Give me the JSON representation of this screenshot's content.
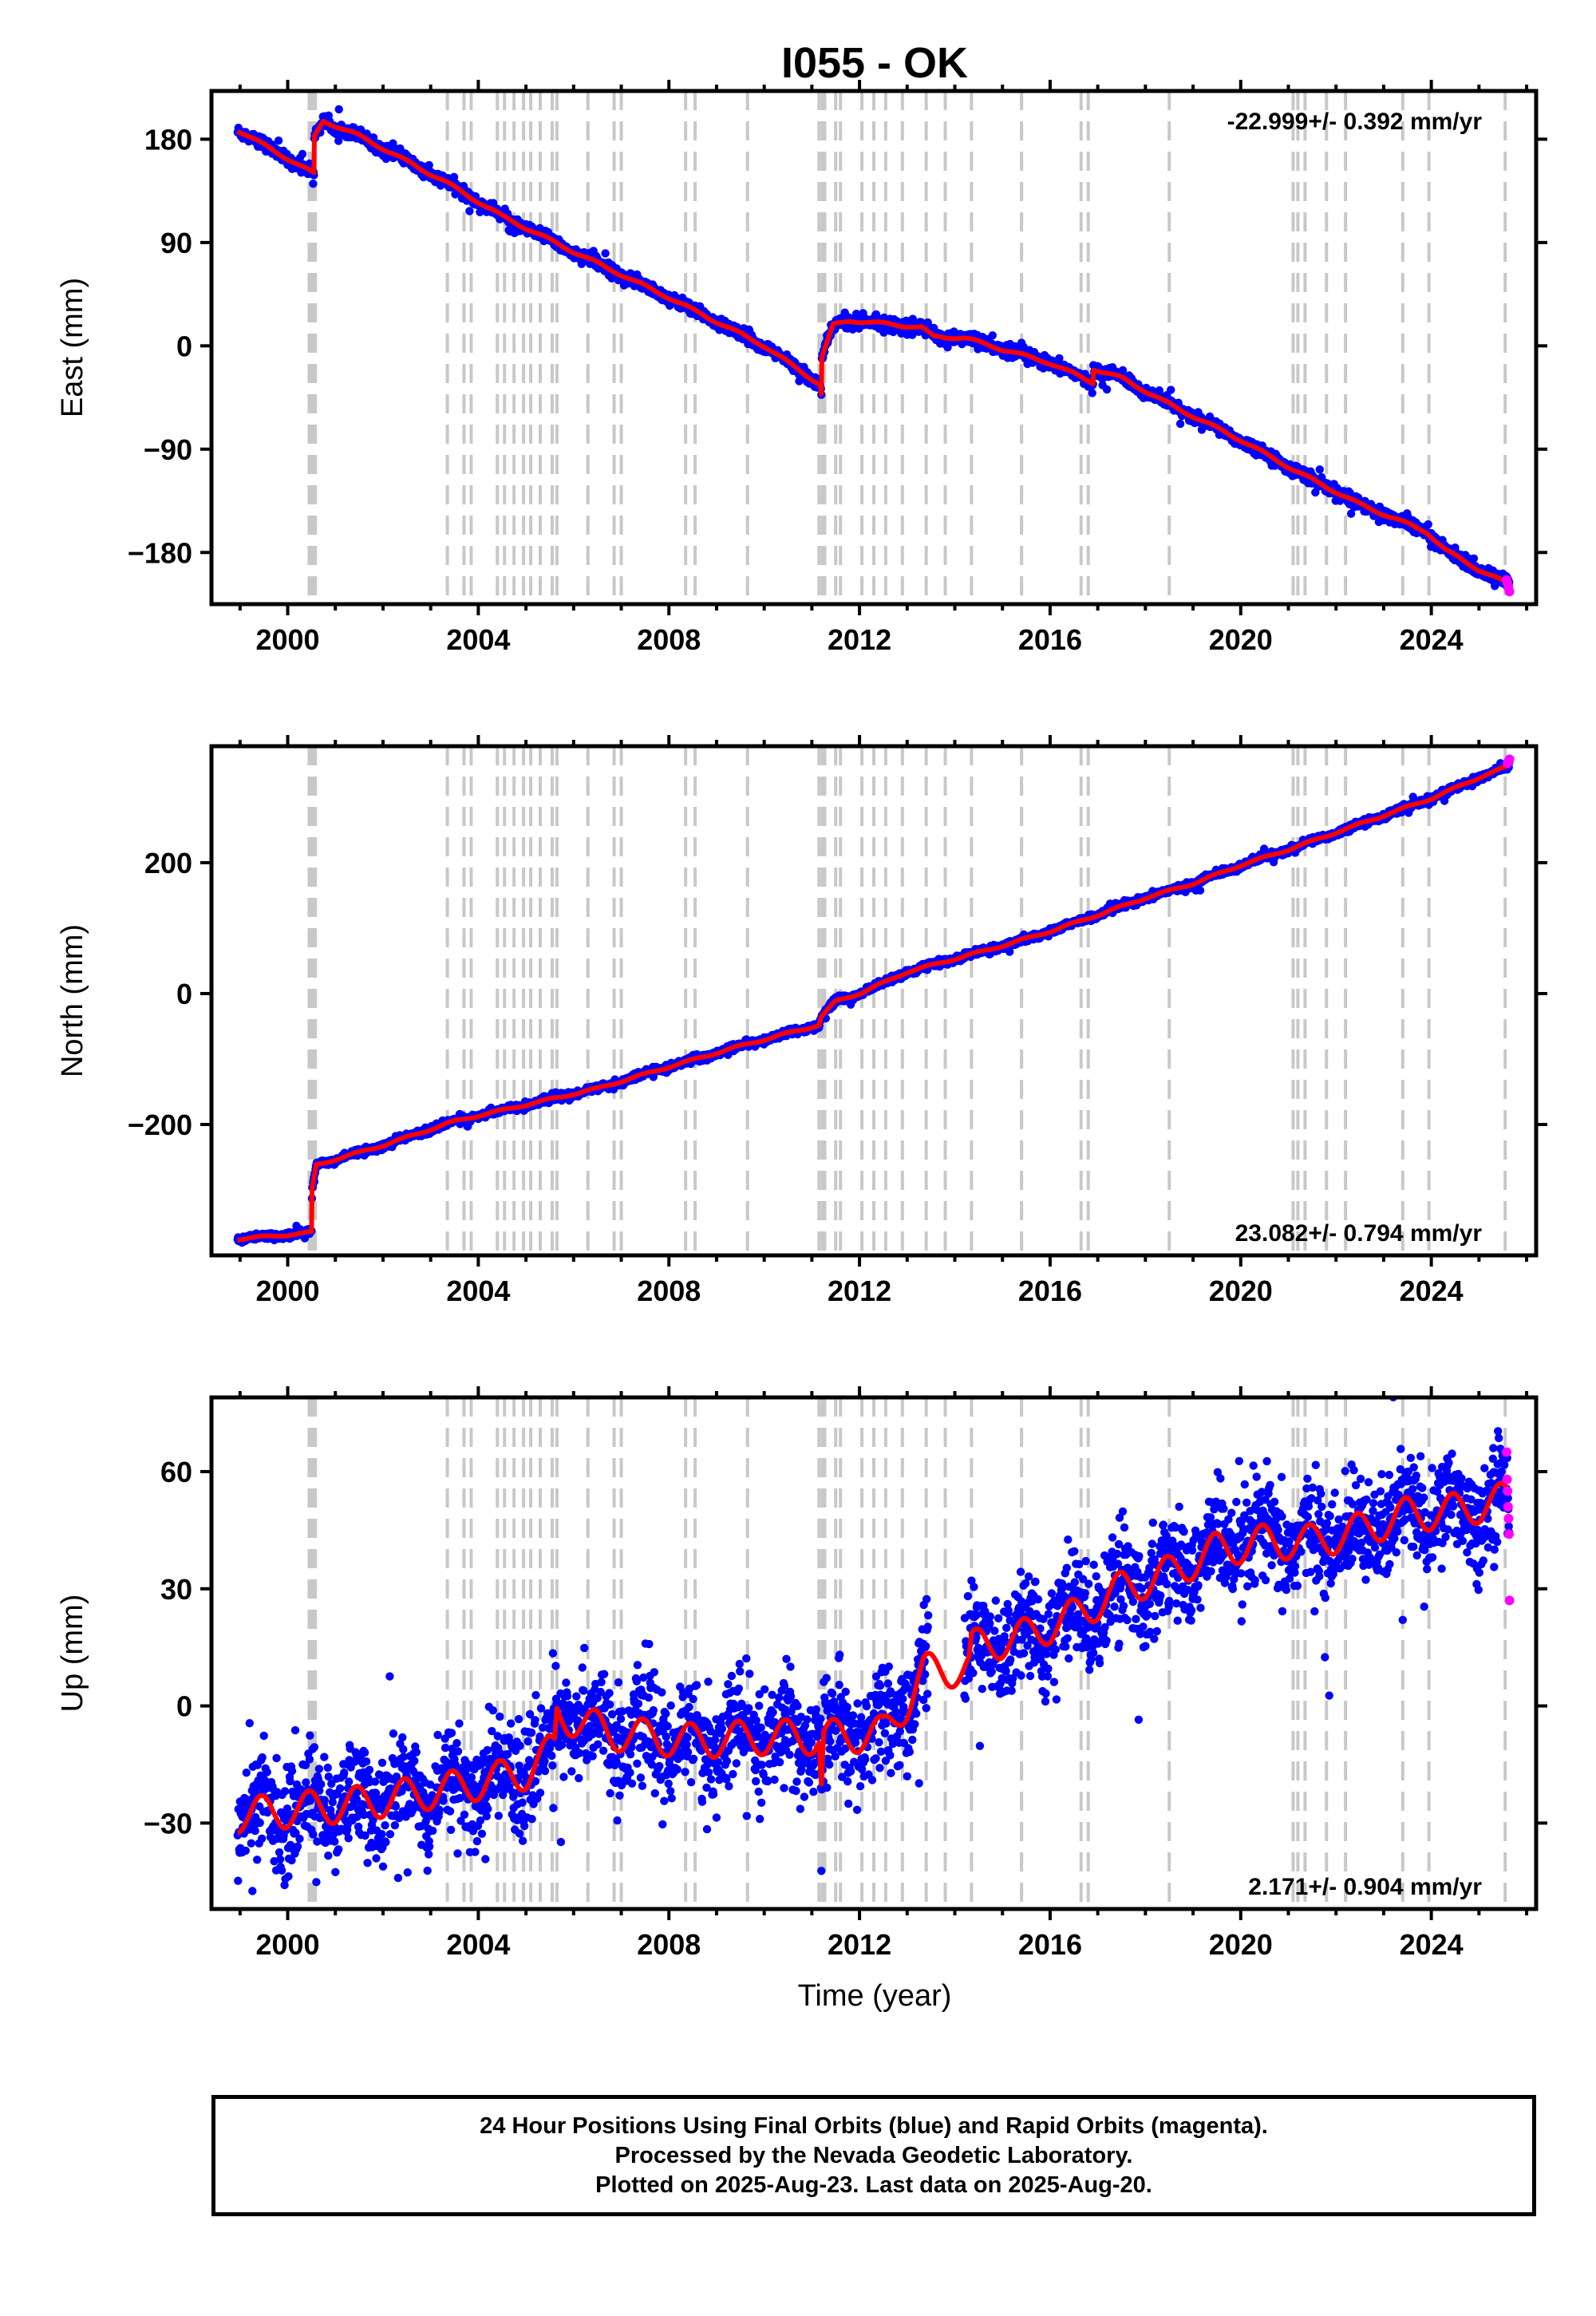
{
  "title": "I055 - OK",
  "xlabel": "Time (year)",
  "footer": {
    "line1": "24 Hour Positions Using Final Orbits (blue) and Rapid Orbits (magenta).",
    "line2": "Processed by the Nevada Geodetic Laboratory.",
    "line3": "Plotted on 2025-Aug-23. Last data on 2025-Aug-20."
  },
  "colors": {
    "final_points": "#0000ff",
    "rapid_points": "#ff00ff",
    "model_line": "#ff0000",
    "event_lines": "#c8c8c8"
  },
  "chart_data": [
    {
      "type": "scatter",
      "component": "east",
      "ylabel": "East (mm)",
      "rate_label": "-22.999+/- 0.392 mm/yr",
      "xlim": [
        1998.4,
        2026.2
      ],
      "ylim": [
        -225,
        222
      ],
      "yticks": [
        180,
        90,
        0,
        -90,
        -180
      ],
      "xticks": [
        2000,
        2004,
        2008,
        2012,
        2016,
        2020,
        2024
      ],
      "grid": false,
      "start": 1998.95,
      "end": 2025.64,
      "rate": -22.999,
      "noise": 2.5,
      "seasonal_amp": 1.2,
      "model_knots": [
        [
          1998.95,
          188
        ],
        [
          2000.55,
          150
        ],
        [
          2000.56,
          182
        ],
        [
          2000.75,
          196
        ],
        [
          2001.5,
          183
        ],
        [
          2003.3,
          143
        ],
        [
          2004.5,
          113
        ],
        [
          2006.0,
          82
        ],
        [
          2008.0,
          42
        ],
        [
          2010.0,
          0
        ],
        [
          2011.18,
          -34
        ],
        [
          2011.2,
          -42
        ],
        [
          2011.21,
          -10
        ],
        [
          2011.45,
          18
        ],
        [
          2011.8,
          22
        ],
        [
          2012.6,
          19
        ],
        [
          2013.3,
          16
        ],
        [
          2013.55,
          8
        ],
        [
          2014.2,
          7
        ],
        [
          2015.0,
          -3
        ],
        [
          2016.0,
          -15
        ],
        [
          2016.9,
          -32
        ],
        [
          2016.91,
          -20
        ],
        [
          2017.5,
          -28
        ],
        [
          2018.6,
          -53
        ],
        [
          2020.0,
          -82
        ],
        [
          2021.2,
          -110
        ],
        [
          2022.5,
          -138
        ],
        [
          2023.9,
          -162
        ],
        [
          2024.3,
          -178
        ],
        [
          2025.0,
          -195
        ],
        [
          2025.64,
          -208
        ]
      ],
      "rapid_x": [
        2025.58,
        2025.6,
        2025.62,
        2025.64
      ],
      "rapid_y": [
        -204,
        -207,
        -211,
        -214
      ]
    },
    {
      "type": "scatter",
      "component": "north",
      "ylabel": "North (mm)",
      "rate_label": "23.082+/- 0.794 mm/yr",
      "xlim": [
        1998.4,
        2026.2
      ],
      "ylim": [
        -400,
        378
      ],
      "yticks": [
        200,
        0,
        -200
      ],
      "xticks": [
        2000,
        2004,
        2008,
        2012,
        2016,
        2020,
        2024
      ],
      "grid": false,
      "start": 1998.95,
      "end": 2025.64,
      "rate": 23.082,
      "noise": 2.5,
      "seasonal_amp": 1.5,
      "model_knots": [
        [
          1998.95,
          -375
        ],
        [
          2000.1,
          -368
        ],
        [
          2000.5,
          -365
        ],
        [
          2000.51,
          -300
        ],
        [
          2000.6,
          -262
        ],
        [
          2002.0,
          -232
        ],
        [
          2003.5,
          -195
        ],
        [
          2005.0,
          -170
        ],
        [
          2006.5,
          -145
        ],
        [
          2008.0,
          -112
        ],
        [
          2009.5,
          -80
        ],
        [
          2011.15,
          -48
        ],
        [
          2011.2,
          -35
        ],
        [
          2011.5,
          -12
        ],
        [
          2012.0,
          0
        ],
        [
          2013.0,
          33
        ],
        [
          2014.0,
          53
        ],
        [
          2015.0,
          73
        ],
        [
          2016.0,
          95
        ],
        [
          2017.0,
          120
        ],
        [
          2018.0,
          146
        ],
        [
          2019.0,
          168
        ],
        [
          2020.0,
          196
        ],
        [
          2021.0,
          220
        ],
        [
          2022.0,
          246
        ],
        [
          2023.0,
          272
        ],
        [
          2024.0,
          298
        ],
        [
          2025.0,
          330
        ],
        [
          2025.64,
          348
        ]
      ],
      "rapid_x": [
        2025.6,
        2025.62,
        2025.64
      ],
      "rapid_y": [
        352,
        355,
        358
      ]
    },
    {
      "type": "scatter",
      "component": "up",
      "ylabel": "Up (mm)",
      "rate_label": "2.171+/- 0.904 mm/yr",
      "xlim": [
        1998.4,
        2026.2
      ],
      "ylim": [
        -52,
        79
      ],
      "yticks": [
        60,
        30,
        0,
        -30
      ],
      "xticks": [
        2000,
        2004,
        2008,
        2012,
        2016,
        2020,
        2024
      ],
      "grid": false,
      "start": 1998.95,
      "end": 2025.64,
      "rate": 2.171,
      "noise": 6.5,
      "seasonal_amp": 4.5,
      "model_knots": [
        [
          1998.95,
          -28
        ],
        [
          2001.5,
          -25
        ],
        [
          2003.5,
          -21
        ],
        [
          2005.0,
          -17
        ],
        [
          2005.6,
          -11
        ],
        [
          2005.65,
          -2
        ],
        [
          2006.8,
          -7
        ],
        [
          2008.5,
          -9
        ],
        [
          2010.0,
          -8
        ],
        [
          2011.15,
          -8
        ],
        [
          2011.2,
          -20
        ],
        [
          2011.25,
          -8
        ],
        [
          2012.5,
          -7
        ],
        [
          2013.0,
          1
        ],
        [
          2013.35,
          9
        ],
        [
          2013.8,
          9
        ],
        [
          2014.3,
          10
        ],
        [
          2014.35,
          15
        ],
        [
          2015.5,
          18
        ],
        [
          2016.5,
          23
        ],
        [
          2017.5,
          30
        ],
        [
          2018.5,
          34
        ],
        [
          2019.5,
          40
        ],
        [
          2020.5,
          42
        ],
        [
          2021.5,
          42
        ],
        [
          2022.5,
          45
        ],
        [
          2023.5,
          49
        ],
        [
          2024.5,
          50
        ],
        [
          2025.64,
          53
        ]
      ],
      "gap": [
        2013.45,
        2014.2
      ],
      "rapid_x": [
        2025.58,
        2025.59,
        2025.6,
        2025.61,
        2025.62,
        2025.63,
        2025.64
      ],
      "rapid_y": [
        65,
        58,
        55,
        51,
        48,
        44,
        27
      ]
    }
  ],
  "events": [
    2000.45,
    2000.48,
    2000.5,
    2000.52,
    2000.55,
    2000.58,
    2003.35,
    2003.7,
    2003.85,
    2004.4,
    2004.55,
    2004.75,
    2004.95,
    2005.1,
    2005.3,
    2005.55,
    2005.65,
    2006.3,
    2006.85,
    2007.0,
    2008.35,
    2008.55,
    2009.65,
    2011.15,
    2011.22,
    2011.27,
    2011.5,
    2011.6,
    2012.05,
    2012.3,
    2012.55,
    2012.9,
    2013.4,
    2013.8,
    2014.35,
    2015.4,
    2016.65,
    2016.8,
    2018.5,
    2021.1,
    2021.2,
    2021.35,
    2021.8,
    2022.2,
    2023.4,
    2023.95,
    2025.55
  ]
}
